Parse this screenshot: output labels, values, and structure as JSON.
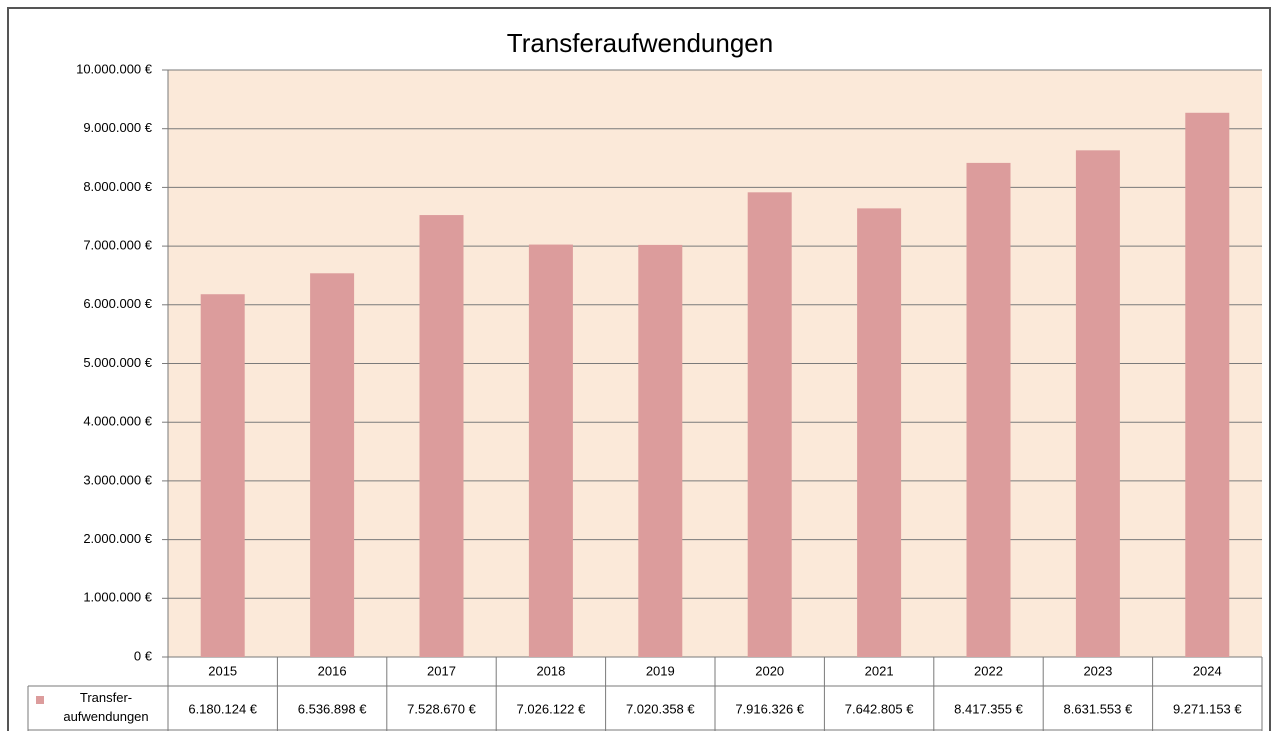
{
  "chart_data": {
    "type": "bar",
    "title": "Transferaufwendungen",
    "categories": [
      "2015",
      "2016",
      "2017",
      "2018",
      "2019",
      "2020",
      "2021",
      "2022",
      "2023",
      "2024"
    ],
    "series": [
      {
        "name": "Transfer-\naufwendungen",
        "color": "#dc9c9c",
        "values": [
          6180124,
          6536898,
          7528670,
          7026122,
          7020358,
          7916326,
          7642805,
          8417355,
          8631553,
          9271153
        ],
        "value_labels": [
          "6.180.124 €",
          "6.536.898 €",
          "7.528.670 €",
          "7.026.122 €",
          "7.020.358 €",
          "7.916.326 €",
          "7.642.805 €",
          "8.417.355 €",
          "8.631.553 €",
          "9.271.153 €"
        ]
      }
    ],
    "ylim": [
      0,
      10000000
    ],
    "yticks": [
      {
        "value": 0,
        "label": "0 €"
      },
      {
        "value": 1000000,
        "label": "1.000.000 €"
      },
      {
        "value": 2000000,
        "label": "2.000.000 €"
      },
      {
        "value": 3000000,
        "label": "3.000.000 €"
      },
      {
        "value": 4000000,
        "label": "4.000.000 €"
      },
      {
        "value": 5000000,
        "label": "5.000.000 €"
      },
      {
        "value": 6000000,
        "label": "6.000.000 €"
      },
      {
        "value": 7000000,
        "label": "7.000.000 €"
      },
      {
        "value": 8000000,
        "label": "8.000.000 €"
      },
      {
        "value": 9000000,
        "label": "9.000.000 €"
      },
      {
        "value": 10000000,
        "label": "10.000.000 €"
      }
    ],
    "grid": true
  }
}
